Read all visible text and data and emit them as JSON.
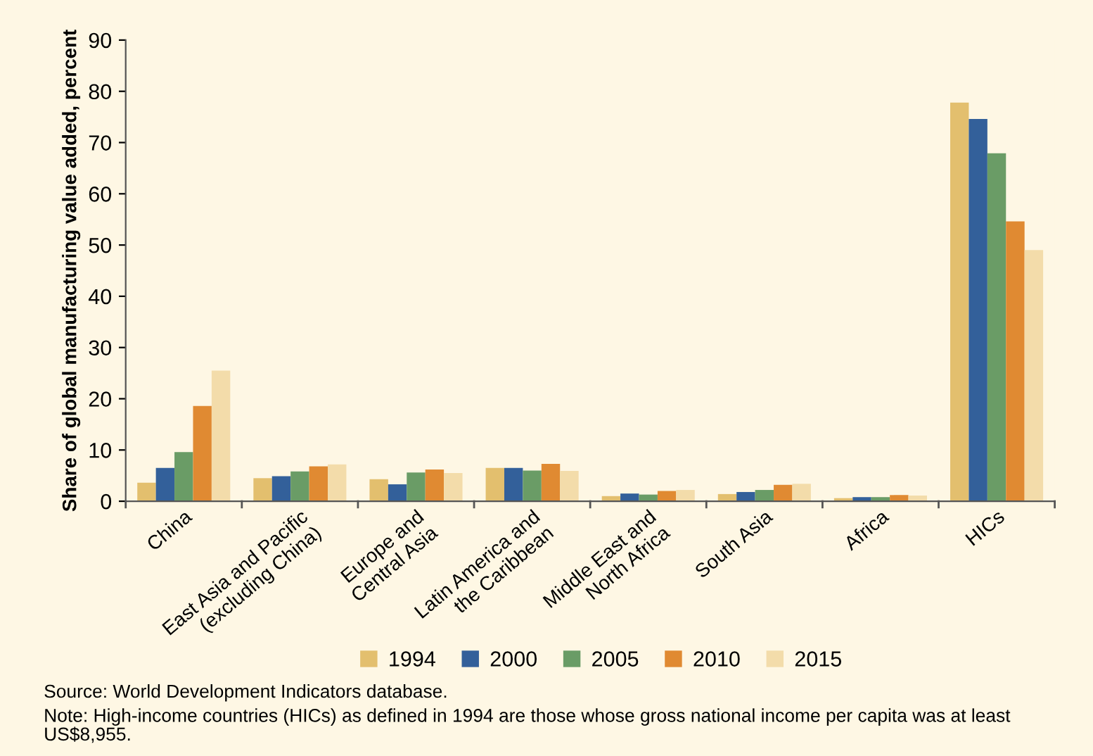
{
  "chart_data": {
    "type": "bar",
    "ylabel": "Share of global manufacturing value added, percent",
    "categories": [
      "China",
      "East Asia and Pacific\n(excluding China)",
      "Europe and\nCentral Asia",
      "Latin America and\nthe Caribbean",
      "Middle East and\nNorth Africa",
      "South Asia",
      "Africa",
      "HICs"
    ],
    "series": [
      {
        "name": "1994",
        "color": "#e3bf6e",
        "values": [
          3.6,
          4.5,
          4.3,
          6.5,
          1.0,
          1.4,
          0.6,
          77.8
        ]
      },
      {
        "name": "2000",
        "color": "#33609a",
        "values": [
          6.5,
          4.9,
          3.3,
          6.5,
          1.5,
          1.8,
          0.8,
          74.6
        ]
      },
      {
        "name": "2005",
        "color": "#6a9c66",
        "values": [
          9.6,
          5.8,
          5.6,
          6.0,
          1.3,
          2.2,
          0.8,
          67.9
        ]
      },
      {
        "name": "2010",
        "color": "#e08a32",
        "values": [
          18.6,
          6.8,
          6.2,
          7.3,
          2.0,
          3.2,
          1.2,
          54.6
        ]
      },
      {
        "name": "2015",
        "color": "#f3dcaa",
        "values": [
          25.5,
          7.2,
          5.5,
          5.9,
          2.2,
          3.4,
          1.1,
          49.0
        ]
      }
    ],
    "ylim": [
      0,
      90
    ],
    "yticks": [
      0,
      10,
      20,
      30,
      40,
      50,
      60,
      70,
      80,
      90
    ],
    "grid": false,
    "legend": "bottom",
    "annotations": [
      "Source: World Development Indicators database.",
      "Note: High-income countries (HICs) as defined in 1994 are those whose gross national income per capita was at least US$8,955."
    ]
  }
}
